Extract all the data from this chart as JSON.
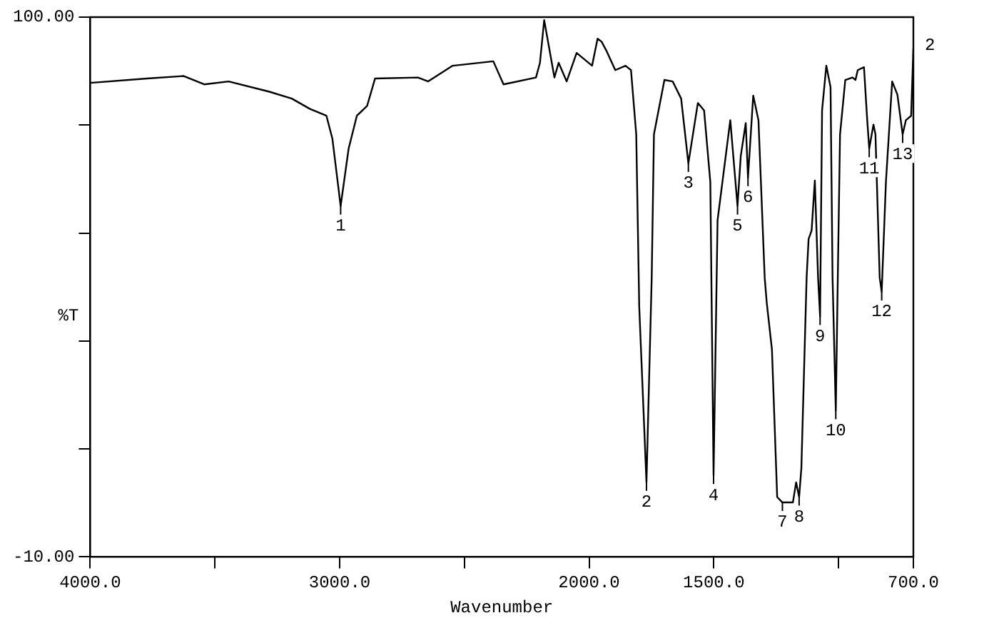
{
  "chart_data": {
    "type": "line",
    "xlabel": "Wavenumber",
    "ylabel": "%T",
    "x": [
      4000,
      3772,
      3625,
      3543,
      3445,
      3282,
      3192,
      3119,
      3053,
      3029,
      2996,
      2964,
      2931,
      2890,
      2858,
      2686,
      2645,
      2547,
      2384,
      2343,
      2213,
      2197,
      2180,
      2139,
      2122,
      2090,
      2050,
      1988,
      1966,
      1950,
      1929,
      1895,
      1854,
      1832,
      1811,
      1799,
      1770,
      1749,
      1740,
      1698,
      1665,
      1631,
      1602,
      1564,
      1539,
      1514,
      1501,
      1485,
      1434,
      1405,
      1392,
      1372,
      1363,
      1342,
      1321,
      1296,
      1288,
      1267,
      1246,
      1225,
      1183,
      1170,
      1158,
      1149,
      1128,
      1120,
      1108,
      1095,
      1082,
      1074,
      1066,
      1049,
      1032,
      1024,
      1011,
      1003,
      994,
      973,
      944,
      932,
      923,
      898,
      885,
      877,
      860,
      852,
      835,
      827,
      810,
      785,
      764,
      743,
      730,
      709,
      700
    ],
    "series": [
      {
        "color": "#000000",
        "values": [
          86.6,
          87.5,
          88,
          86.3,
          86.9,
          84.8,
          83.4,
          81.3,
          79.9,
          75.2,
          61.5,
          73.2,
          79.9,
          81.9,
          87.5,
          87.7,
          86.9,
          90.1,
          91,
          86.3,
          87.7,
          90.7,
          99.4,
          87.7,
          90.7,
          86.9,
          92.7,
          90.1,
          95.6,
          95,
          93,
          89.2,
          90.1,
          89.2,
          76.1,
          41,
          5.2,
          46.9,
          76.1,
          87.2,
          86.9,
          83.4,
          70.2,
          82.5,
          81,
          66.4,
          6.6,
          58.6,
          79,
          61.5,
          71.7,
          78.4,
          67.3,
          84,
          79,
          46.9,
          41.9,
          32.3,
          2.2,
          1.1,
          1.1,
          5.2,
          2.2,
          8.1,
          46.9,
          54.8,
          56.5,
          66.7,
          46.9,
          39,
          81,
          90.1,
          85.7,
          46.9,
          19.8,
          46.9,
          76.1,
          87.2,
          87.7,
          87.2,
          89.2,
          89.8,
          79,
          73.2,
          78.1,
          76.1,
          46.9,
          44,
          66.4,
          86.9,
          84.2,
          76.1,
          79,
          79.9,
          93.6
        ]
      }
    ],
    "xlim": [
      4000,
      700
    ],
    "xticks": [
      {
        "value": 4000,
        "label": "4000.0"
      },
      {
        "value": 3500,
        "label": null
      },
      {
        "value": 3000,
        "label": "3000.0"
      },
      {
        "value": 2500,
        "label": null
      },
      {
        "value": 2000,
        "label": "2000.0"
      },
      {
        "value": 1500,
        "label": "1500.0"
      },
      {
        "value": 1000,
        "label": null
      },
      {
        "value": 700,
        "label": "700.0"
      }
    ],
    "ylim": [
      -10,
      100
    ],
    "yticks": [
      {
        "value": -10,
        "label": "-10.00"
      },
      {
        "value": 12,
        "label": null
      },
      {
        "value": 34,
        "label": null
      },
      {
        "value": 56,
        "label": null
      },
      {
        "value": 78,
        "label": null
      },
      {
        "value": 100,
        "label": "100.00"
      }
    ],
    "grid": false,
    "legend": false,
    "marker": "none",
    "line_style": "solid",
    "annotations": [
      {
        "text": "1",
        "x": 2996,
        "y": 61.5
      },
      {
        "text": "2",
        "x": 1770,
        "y": 5.2
      },
      {
        "text": "3",
        "x": 1602,
        "y": 70.2
      },
      {
        "text": "4",
        "x": 1501,
        "y": 6.6
      },
      {
        "text": "5",
        "x": 1405,
        "y": 61.5
      },
      {
        "text": "6",
        "x": 1363,
        "y": 67.3
      },
      {
        "text": "7",
        "x": 1225,
        "y": 1.1
      },
      {
        "text": "8",
        "x": 1158,
        "y": 2.2
      },
      {
        "text": "9",
        "x": 1074,
        "y": 39
      },
      {
        "text": "10",
        "x": 1011,
        "y": 19.8
      },
      {
        "text": "11",
        "x": 877,
        "y": 73.2
      },
      {
        "text": "12",
        "x": 827,
        "y": 44
      },
      {
        "text": "13",
        "x": 743,
        "y": 76.1
      },
      "2"
    ]
  }
}
